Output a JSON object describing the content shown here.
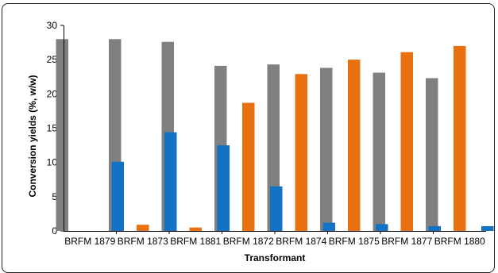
{
  "chart_data": {
    "type": "bar",
    "categories": [
      "BRFM 1879",
      "BRFM 1873",
      "BRFM 1881",
      "BRFM 1872",
      "BRFM 1874",
      "BRFM 1875",
      "BRFM 1877",
      "BRFM 1880"
    ],
    "series": [
      {
        "color": "#808080",
        "values": [
          28.0,
          28.0,
          27.6,
          24.1,
          24.3,
          23.8,
          23.1,
          22.3
        ]
      },
      {
        "color": "#E8700F",
        "values": [
          0.0,
          0.9,
          0.5,
          18.7,
          22.9,
          25.0,
          26.1,
          27.0
        ]
      },
      {
        "color": "#1272C4",
        "values": [
          10.1,
          14.4,
          12.5,
          6.5,
          1.2,
          1.0,
          0.7,
          0.7
        ]
      }
    ],
    "xlabel": "Transformant",
    "ylabel": "Conversion yields (%, w/w)",
    "ylim": [
      0,
      30
    ],
    "yticks": [
      "0",
      "5",
      "10",
      "15",
      "20",
      "25",
      "30"
    ],
    "grid": false,
    "legend": "none"
  }
}
